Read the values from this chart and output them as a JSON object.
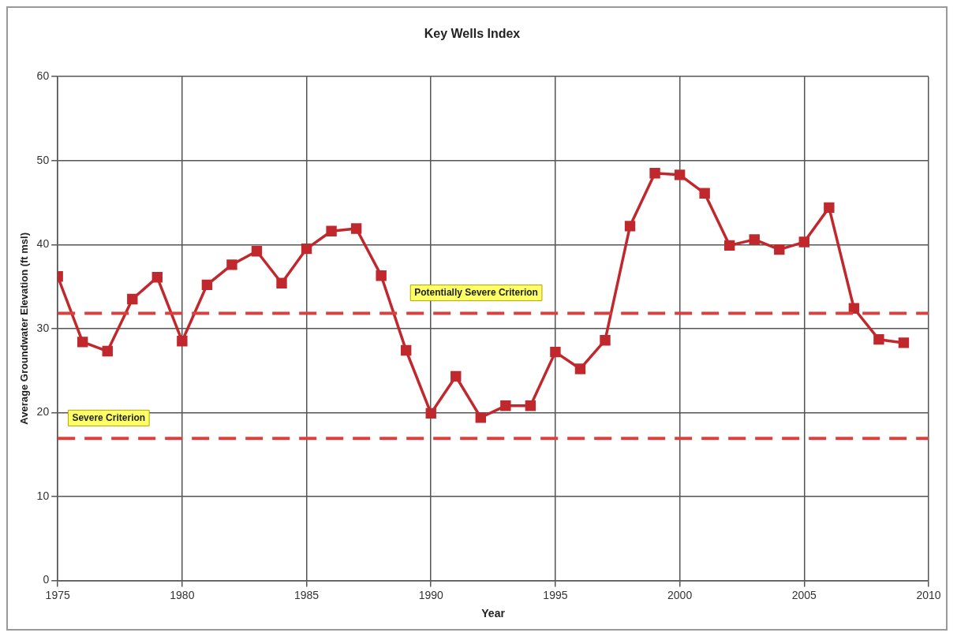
{
  "chart_data": {
    "type": "line",
    "title": "Key Wells Index",
    "xlabel": "Year",
    "ylabel": "Average Groundwater Elevation (ft msl)",
    "x": [
      1975,
      1976,
      1977,
      1978,
      1979,
      1980,
      1981,
      1982,
      1983,
      1984,
      1985,
      1986,
      1987,
      1988,
      1989,
      1990,
      1991,
      1992,
      1993,
      1994,
      1995,
      1996,
      1997,
      1998,
      1999,
      2000,
      2001,
      2002,
      2003,
      2004,
      2005,
      2006,
      2007,
      2008,
      2009
    ],
    "series": [
      {
        "color": "#c0282d",
        "values": [
          36.2,
          28.4,
          27.3,
          33.5,
          36.1,
          28.5,
          35.2,
          37.6,
          39.2,
          35.4,
          39.5,
          41.6,
          41.9,
          36.3,
          27.4,
          19.9,
          24.3,
          19.4,
          20.8,
          20.8,
          27.2,
          25.2,
          28.6,
          42.2,
          48.5,
          48.3,
          46.1,
          39.9,
          40.6,
          39.4,
          40.3,
          44.4,
          32.4,
          28.7,
          28.3
        ]
      }
    ],
    "xlim": [
      1975,
      2010
    ],
    "xticks": [
      1975,
      1980,
      1985,
      1990,
      1995,
      2000,
      2005,
      2010
    ],
    "ylim": [
      0,
      60
    ],
    "yticks": [
      0,
      10,
      20,
      30,
      40,
      50,
      60
    ],
    "grid": true,
    "legend": false,
    "marker": "square",
    "line_style": "solid",
    "ref_lines": [
      {
        "axis": "y",
        "value": 31.8,
        "label": "Potentially Severe Criterion",
        "color": "#d9413f",
        "line_style": "dashed"
      },
      {
        "axis": "y",
        "value": 16.9,
        "label": "Severe Criterion",
        "color": "#d9413f",
        "line_style": "dashed"
      }
    ]
  }
}
